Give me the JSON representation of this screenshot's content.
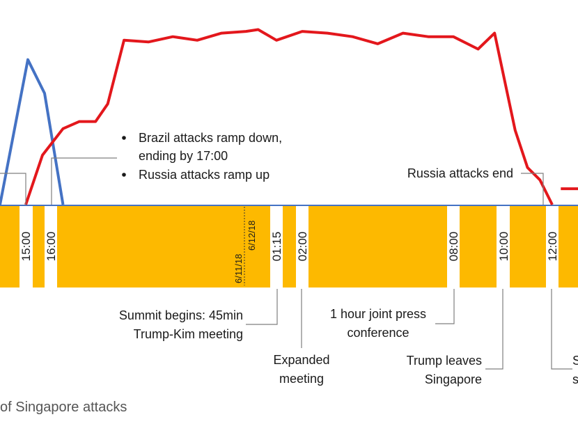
{
  "colors": {
    "band": "#fdb900",
    "gap": "#ffffff",
    "brazil": "#4472c4",
    "russia": "#e3171c",
    "axis": "#4472c4",
    "annotation_line": "#7f7f7f"
  },
  "caption": "of Singapore attacks",
  "chart_data": {
    "type": "line",
    "title": "",
    "xlabel": "",
    "ylabel": "",
    "x_axis": {
      "kind": "time",
      "tick_labels": [
        "15:00",
        "16:00",
        "01:15",
        "02:00",
        "08:00",
        "10:00",
        "12:00"
      ],
      "date_divider_labels": [
        "6/11/18",
        "6/12/18"
      ]
    },
    "ylim": [
      0,
      100
    ],
    "grid": false,
    "legend": "none",
    "series": [
      {
        "color": "#4472c4",
        "points": [
          {
            "t": "14:50",
            "y": 0
          },
          {
            "t": "15:05",
            "y": 82
          },
          {
            "t": "15:45",
            "y": 63
          },
          {
            "t": "16:30",
            "y": 0
          }
        ]
      },
      {
        "color": "#e3171c",
        "points": [
          {
            "t": "15:00",
            "y": 0
          },
          {
            "t": "15:40",
            "y": 28
          },
          {
            "t": "16:30",
            "y": 43
          },
          {
            "t": "17:10",
            "y": 47
          },
          {
            "t": "17:50",
            "y": 47
          },
          {
            "t": "18:20",
            "y": 57
          },
          {
            "t": "19:00",
            "y": 93
          },
          {
            "t": "20:00",
            "y": 92
          },
          {
            "t": "21:00",
            "y": 95
          },
          {
            "t": "22:00",
            "y": 93
          },
          {
            "t": "23:00",
            "y": 97
          },
          {
            "t": "00:00",
            "y": 98
          },
          {
            "t": "00:30",
            "y": 99
          },
          {
            "t": "01:15",
            "y": 93
          },
          {
            "t": "02:00",
            "y": 98
          },
          {
            "t": "03:00",
            "y": 97
          },
          {
            "t": "04:00",
            "y": 95
          },
          {
            "t": "05:00",
            "y": 91
          },
          {
            "t": "06:00",
            "y": 97
          },
          {
            "t": "07:00",
            "y": 95
          },
          {
            "t": "08:00",
            "y": 95
          },
          {
            "t": "09:00",
            "y": 88
          },
          {
            "t": "09:40",
            "y": 97
          },
          {
            "t": "10:30",
            "y": 42
          },
          {
            "t": "11:00",
            "y": 21
          },
          {
            "t": "11:30",
            "y": 14
          },
          {
            "t": "12:00",
            "y": 0
          }
        ]
      },
      {
        "color": "#e3171c",
        "points": [
          {
            "t": "12:15",
            "y": 9
          },
          {
            "t": "12:45",
            "y": 9
          }
        ]
      }
    ],
    "annotations": [
      {
        "id": "ramp",
        "lines": [
          "Brazil attacks ramp down,",
          "ending by 17:00",
          "Russia attacks ramp up"
        ]
      },
      {
        "id": "russia-end",
        "lines": [
          "Russia attacks end"
        ]
      },
      {
        "id": "summit",
        "lines": [
          "Summit begins: 45min",
          "Trump-Kim meeting"
        ]
      },
      {
        "id": "expanded",
        "lines": [
          "Expanded",
          "meeting"
        ]
      },
      {
        "id": "press",
        "lines": [
          "1 hour joint press",
          "conference"
        ]
      },
      {
        "id": "leaves",
        "lines": [
          "Trump leaves",
          "Singapore"
        ]
      },
      {
        "id": "cut-right",
        "lines": [
          "S",
          "s"
        ]
      }
    ]
  }
}
